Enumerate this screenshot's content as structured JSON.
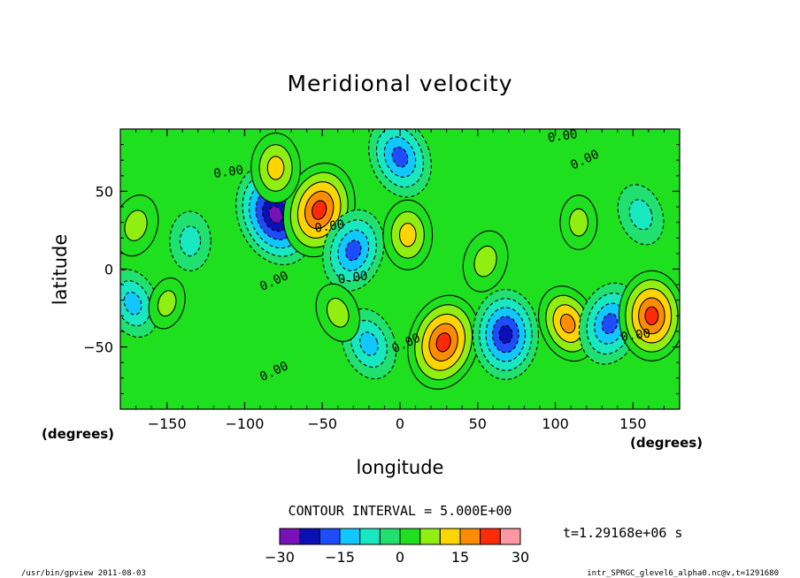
{
  "chart_data": {
    "type": "heatmap",
    "title": "Meridional velocity",
    "xlabel": "longitude",
    "ylabel": "latitude",
    "x_units": "(degrees)",
    "y_units": "(degrees)",
    "xlim": [
      -180,
      180
    ],
    "ylim": [
      -90,
      90
    ],
    "x_ticks": [
      -150,
      -100,
      -50,
      0,
      50,
      100,
      150
    ],
    "x_tick_labels": [
      "−150",
      "−100",
      "−50",
      "0",
      "50",
      "100",
      "150"
    ],
    "y_ticks": [
      50,
      0,
      -50
    ],
    "y_tick_labels": [
      "50",
      "0",
      "−50"
    ],
    "contour_interval_label": "CONTOUR INTERVAL = 5.000E+00",
    "contour_labels": [
      {
        "text": "0.00",
        "lon": -110,
        "lat": 60
      },
      {
        "text": "0.00",
        "lon": -80,
        "lat": -10
      },
      {
        "text": "0.00",
        "lon": -30,
        "lat": -8
      },
      {
        "text": "0.00",
        "lon": -80,
        "lat": -68
      },
      {
        "text": "0.00",
        "lon": 105,
        "lat": 83
      },
      {
        "text": "0.00",
        "lon": 120,
        "lat": 68
      },
      {
        "text": "0.00",
        "lon": -45,
        "lat": 25
      },
      {
        "text": "0.00",
        "lon": 5,
        "lat": -50
      },
      {
        "text": "0.00",
        "lon": 152,
        "lat": -45
      }
    ],
    "features": [
      {
        "name": "negative-cell",
        "lon": -80,
        "lat": 35,
        "peak": -25
      },
      {
        "name": "positive-cell",
        "lon": -52,
        "lat": 38,
        "peak": 22
      },
      {
        "name": "positive-cell",
        "lon": -80,
        "lat": 65,
        "peak": 12
      },
      {
        "name": "negative-cell",
        "lon": 0,
        "lat": 72,
        "peak": -17
      },
      {
        "name": "negative-cell",
        "lon": -30,
        "lat": 12,
        "peak": -17
      },
      {
        "name": "positive-cell",
        "lon": 5,
        "lat": 22,
        "peak": 12
      },
      {
        "name": "negative-cell",
        "lon": -20,
        "lat": -48,
        "peak": -13
      },
      {
        "name": "positive-cell",
        "lon": 28,
        "lat": -47,
        "peak": 22
      },
      {
        "name": "negative-cell",
        "lon": 68,
        "lat": -42,
        "peak": -20
      },
      {
        "name": "positive-cell",
        "lon": 108,
        "lat": -35,
        "peak": 15
      },
      {
        "name": "negative-cell",
        "lon": 135,
        "lat": -35,
        "peak": -17
      },
      {
        "name": "positive-cell",
        "lon": 162,
        "lat": -30,
        "peak": 20
      },
      {
        "name": "negative-cell",
        "lon": -172,
        "lat": -22,
        "peak": -12
      },
      {
        "name": "positive-cell",
        "lon": -170,
        "lat": 28,
        "peak": 9
      },
      {
        "name": "negative-cell",
        "lon": -135,
        "lat": 18,
        "peak": -8
      },
      {
        "name": "negative-cell",
        "lon": 155,
        "lat": 35,
        "peak": -9
      },
      {
        "name": "positive-cell",
        "lon": 55,
        "lat": 5,
        "peak": 9
      },
      {
        "name": "positive-cell",
        "lon": 115,
        "lat": 30,
        "peak": 6
      },
      {
        "name": "positive-cell",
        "lon": -40,
        "lat": -28,
        "peak": 8
      },
      {
        "name": "positive-cell",
        "lon": -150,
        "lat": -22,
        "peak": 5
      }
    ],
    "colorbar": {
      "boundaries": [
        -30,
        -25,
        -20,
        -15,
        -10,
        -5,
        0,
        5,
        10,
        15,
        20,
        25,
        30
      ],
      "colors": [
        "#7a10b8",
        "#0a10b5",
        "#1e4cff",
        "#10c8ff",
        "#18e8c0",
        "#20e070",
        "#1ee01e",
        "#90ee10",
        "#ffd500",
        "#ff8c00",
        "#ff2a0a",
        "#ff98a0"
      ],
      "tick_values": [
        -30,
        -15,
        0,
        15,
        30
      ],
      "tick_labels": [
        "−30",
        "−15",
        "0",
        "15",
        "30"
      ]
    }
  },
  "time_label": "t=1.29168e+06 s",
  "footer_left": "/usr/bin/gpview   2011-08-03",
  "footer_right": "intr_SPRGC_glevel6_alpha0.nc@v,t=1291680"
}
